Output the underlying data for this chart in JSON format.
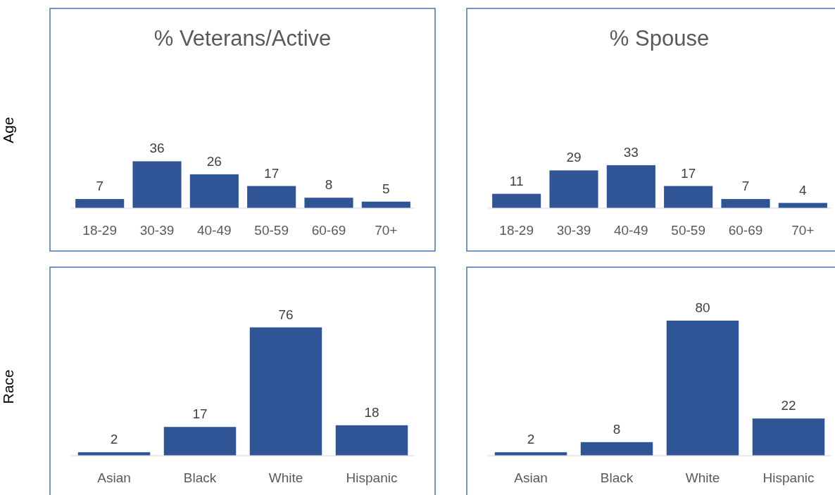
{
  "chart_data": [
    {
      "type": "bar",
      "title": "% Veterans/Active",
      "ylabel": "Age",
      "categories": [
        "18-29",
        "30-39",
        "40-49",
        "50-59",
        "60-69",
        "70+"
      ],
      "values": [
        7,
        36,
        26,
        17,
        8,
        5
      ],
      "color": "#2f5597",
      "data_labels": true
    },
    {
      "type": "bar",
      "title": "% Spouse",
      "categories": [
        "18-29",
        "30-39",
        "40-49",
        "50-59",
        "60-69",
        "70+"
      ],
      "values": [
        11,
        29,
        33,
        17,
        7,
        4
      ],
      "color": "#2f5597",
      "data_labels": true
    },
    {
      "type": "bar",
      "ylabel": "Race",
      "categories": [
        "Asian",
        "Black",
        "White",
        "Hispanic"
      ],
      "values": [
        2,
        17,
        76,
        18
      ],
      "color": "#2f5597",
      "data_labels": true
    },
    {
      "type": "bar",
      "categories": [
        "Asian",
        "Black",
        "White",
        "Hispanic"
      ],
      "values": [
        2,
        8,
        80,
        22
      ],
      "color": "#2f5597",
      "data_labels": true
    }
  ]
}
